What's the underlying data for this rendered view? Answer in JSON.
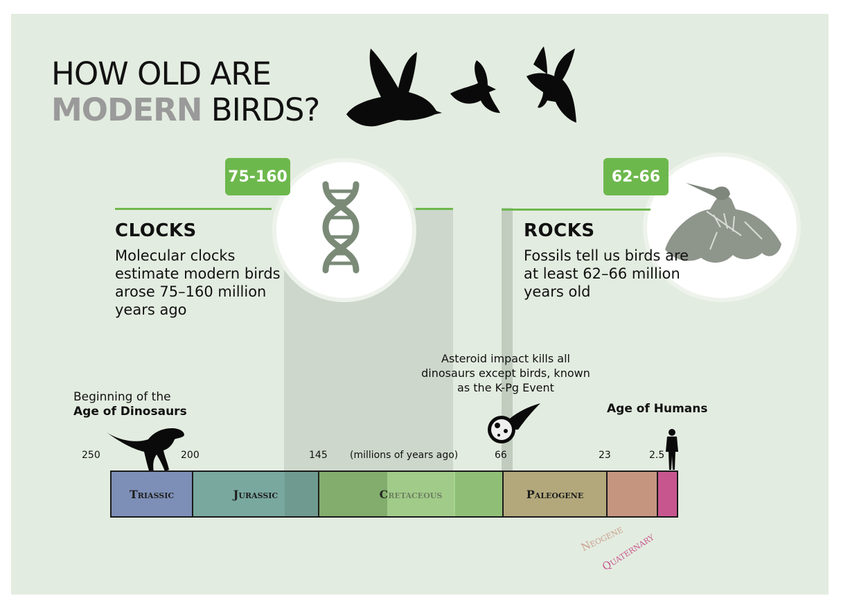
{
  "title": {
    "line1": "HOW OLD ARE",
    "line2_emph": "MODERN",
    "line2_rest": "BIRDS?"
  },
  "clocks": {
    "badge": "75-160",
    "heading": "CLOCKS",
    "text": "Molecular clocks estimate modern birds arose 75–160 million years ago",
    "icon": "dna-icon"
  },
  "rocks": {
    "badge": "62-66",
    "heading": "ROCKS",
    "text": "Fossils tell us birds are at least 62–66 million years old",
    "icon": "fossil-bird-icon"
  },
  "annotations": {
    "dino_line1": "Beginning of the",
    "dino_line2": "Age of Dinosaurs",
    "asteroid": "Asteroid impact kills all dinosaurs except birds, known as the K-Pg Event",
    "humans": "Age of Humans",
    "units": "(millions of years ago)"
  },
  "timeline": {
    "ticks": [
      "250",
      "200",
      "145",
      "66",
      "23",
      "2.5"
    ],
    "periods": [
      {
        "name": "Triassic",
        "color": "#7d8fb7"
      },
      {
        "name": "Jurassic",
        "color": "#79a89f"
      },
      {
        "name": "Cretaceous",
        "color": "#8fbf76"
      },
      {
        "name": "Paleogene",
        "color": "#b2a87c"
      },
      {
        "name": "",
        "color": "#c59580"
      },
      {
        "name": "",
        "color": "#c7568e"
      }
    ],
    "neogene_label": "Neogene",
    "quaternary_label": "Quaternary"
  },
  "colors": {
    "accent_green": "#6db84d",
    "background": "#e3ece0"
  }
}
